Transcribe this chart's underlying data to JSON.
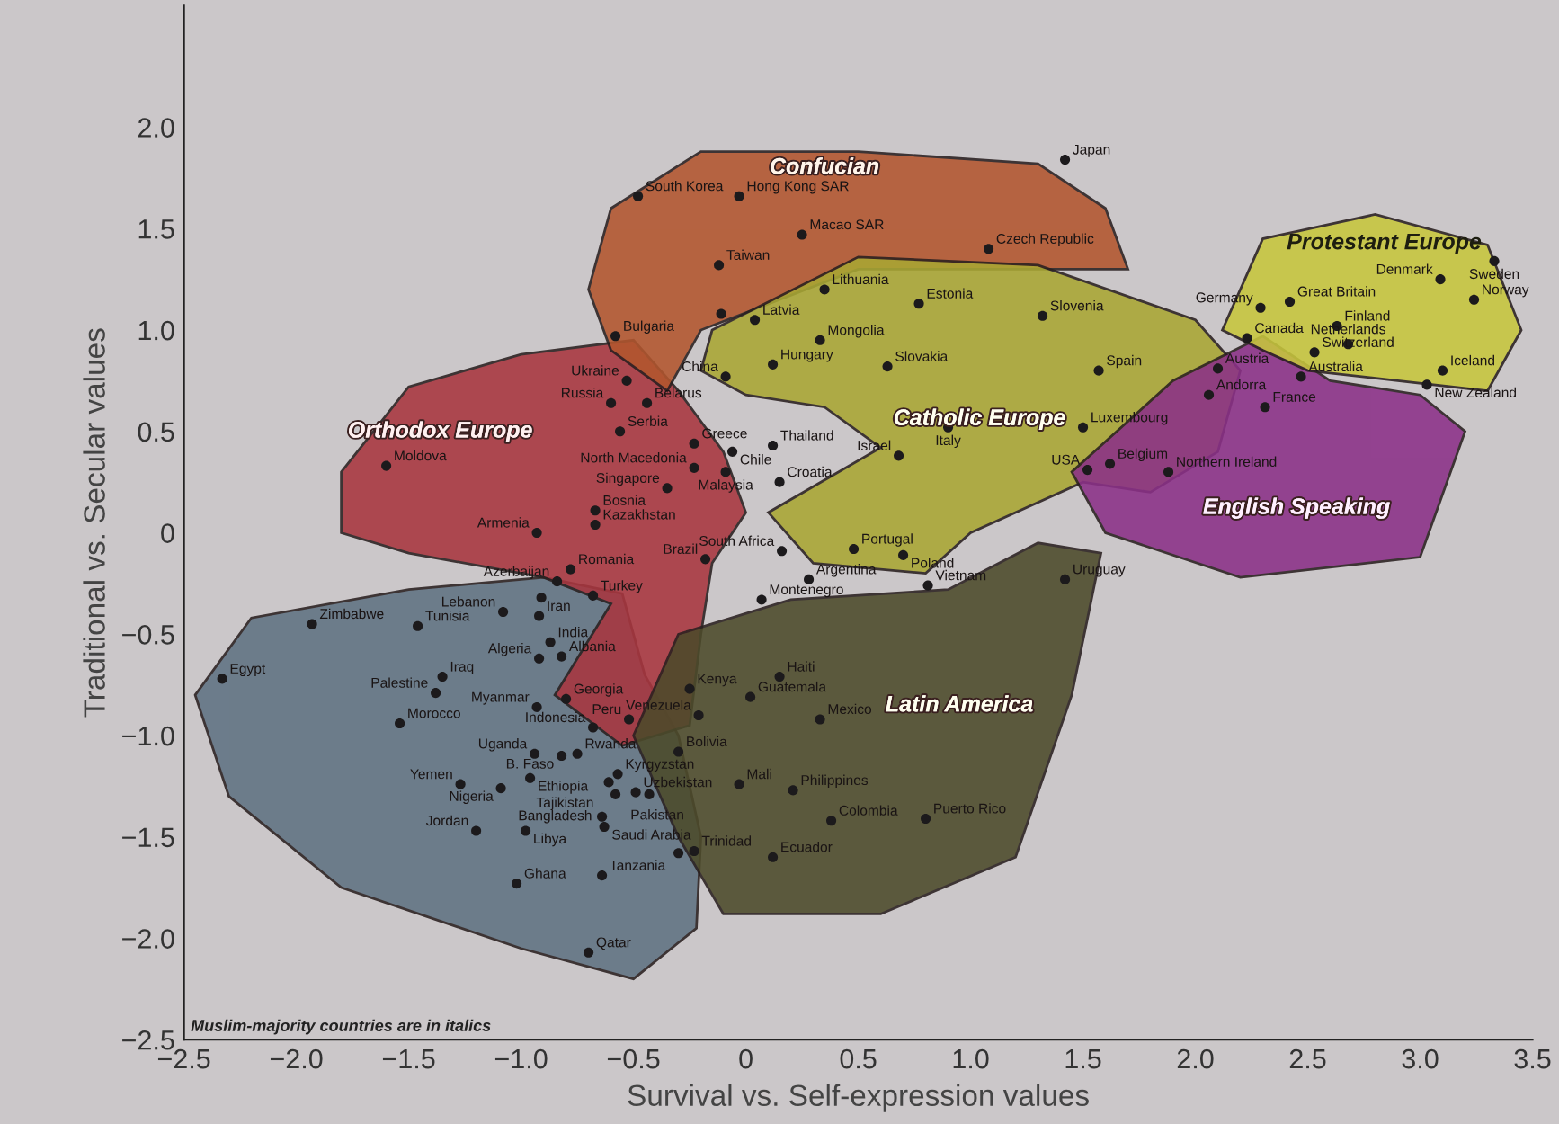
{
  "chart_data": {
    "type": "scatter",
    "xlabel": "Survival vs. Self-expression values",
    "ylabel": "Traditional vs. Secular values",
    "xlim": [
      -2.5,
      3.5
    ],
    "ylim": [
      -2.5,
      2.6
    ],
    "xticks": [
      {
        "value": -2.5,
        "label": "−2.5"
      },
      {
        "value": -2.0,
        "label": "−2.0"
      },
      {
        "value": -1.5,
        "label": "−1.5"
      },
      {
        "value": -1.0,
        "label": "−1.0"
      },
      {
        "value": -0.5,
        "label": "−0.5"
      },
      0,
      0.5,
      {
        "value": 1,
        "label": "1.0"
      },
      1.5,
      {
        "value": 2,
        "label": "2.0"
      },
      2.5,
      {
        "value": 3,
        "label": "3.0"
      },
      3.5
    ],
    "yticks": [
      {
        "value": -2.5,
        "label": "−2.5"
      },
      {
        "value": -2.0,
        "label": "−2.0"
      },
      {
        "value": -1.5,
        "label": "−1.5"
      },
      {
        "value": -1.0,
        "label": "−1.0"
      },
      {
        "value": -0.5,
        "label": "−0.5"
      },
      0,
      0.5,
      {
        "value": 1,
        "label": "1.0"
      },
      1.5,
      {
        "value": 2,
        "label": "2.0"
      }
    ],
    "marker": "circle",
    "series": [
      {
        "color": "#1c1a1c",
        "x": [
          -0.48,
          -0.03,
          0.25,
          1.42,
          -0.12,
          1.08,
          0.35,
          0.04,
          -0.11,
          0.33,
          0.12,
          -0.09,
          0.77,
          0.63,
          1.32,
          1.57,
          0.9,
          1.5,
          1.62,
          1.52,
          -0.06,
          0.12,
          0.68,
          0.15,
          -0.35,
          -0.09,
          -0.58,
          -0.53,
          -0.6,
          -0.44,
          -0.56,
          -0.23,
          -0.23,
          -1.6,
          -0.67,
          -0.93,
          -0.67,
          -0.78,
          0.48,
          0.7,
          0.16,
          -0.18,
          0.28,
          0.07,
          0.81,
          1.42,
          0.15,
          0.02,
          -0.21,
          0.33,
          -0.3,
          -0.03,
          0.21,
          0.8,
          0.38,
          -0.23,
          0.12,
          -0.3,
          2.29,
          2.42,
          2.23,
          2.1,
          2.06,
          2.31,
          2.47,
          2.53,
          2.63,
          2.68,
          3.09,
          3.33,
          3.24,
          3.1,
          3.03,
          1.88,
          -0.84,
          -1.08,
          -1.46,
          -1.93,
          -2.33,
          -0.68,
          -0.91,
          -0.92,
          -0.87,
          -0.82,
          -0.92,
          -1.35,
          -1.38,
          -1.54,
          -0.93,
          -0.8,
          -0.25,
          -0.52,
          -0.68,
          -0.75,
          -0.82,
          -0.94,
          -0.96,
          -1.27,
          -1.09,
          -0.61,
          -0.57,
          -0.49,
          -0.58,
          -0.64,
          -0.63,
          -0.43,
          -1.2,
          -0.98,
          -1.02,
          -0.64,
          -0.7
        ],
        "values": [
          1.66,
          1.66,
          1.47,
          1.84,
          1.32,
          1.4,
          1.2,
          1.05,
          1.08,
          0.95,
          0.83,
          0.77,
          1.13,
          0.82,
          1.07,
          0.8,
          0.52,
          0.52,
          0.34,
          0.31,
          0.4,
          0.43,
          0.38,
          0.25,
          0.22,
          0.3,
          0.97,
          0.75,
          0.64,
          0.64,
          0.5,
          0.44,
          0.32,
          0.33,
          0.11,
          0.0,
          0.04,
          -0.18,
          -0.08,
          -0.11,
          -0.09,
          -0.13,
          -0.23,
          -0.33,
          -0.26,
          -0.23,
          -0.71,
          -0.81,
          -0.9,
          -0.92,
          -1.08,
          -1.24,
          -1.27,
          -1.41,
          -1.42,
          -1.57,
          -1.6,
          -1.58,
          1.11,
          1.14,
          0.96,
          0.81,
          0.68,
          0.62,
          0.77,
          0.89,
          1.02,
          0.93,
          1.25,
          1.34,
          1.15,
          0.8,
          0.73,
          0.3,
          -0.24,
          -0.39,
          -0.46,
          -0.45,
          -0.72,
          -0.31,
          -0.32,
          -0.41,
          -0.54,
          -0.61,
          -0.62,
          -0.71,
          -0.79,
          -0.94,
          -0.86,
          -0.82,
          -0.77,
          -0.92,
          -0.96,
          -1.09,
          -1.1,
          -1.09,
          -1.21,
          -1.24,
          -1.26,
          -1.23,
          -1.19,
          -1.28,
          -1.29,
          -1.4,
          -1.45,
          -1.29,
          -1.47,
          -1.47,
          -1.73,
          -1.69,
          -2.07
        ],
        "value_labels": [
          "South Korea",
          "Hong Kong SAR",
          "Macao SAR",
          "Japan",
          "Taiwan",
          "Czech Republic",
          "Lithuania",
          "Latvia",
          null,
          "Mongolia",
          "Hungary",
          "China",
          "Estonia",
          "Slovakia",
          "Slovenia",
          "Spain",
          "Italy",
          "Luxembourg",
          "Belgium",
          "USA",
          "Chile",
          "Thailand",
          "Israel",
          "Croatia",
          "Singapore",
          "Malaysia",
          "Bulgaria",
          "Ukraine",
          "Russia",
          "Belarus",
          "Serbia",
          "Greece",
          "North Macedonia",
          "Moldova",
          "Bosnia",
          "Armenia",
          "Kazakhstan",
          "Romania",
          "Portugal",
          "Poland",
          "South Africa",
          "Brazil",
          "Argentina",
          "Montenegro",
          "Vietnam",
          "Uruguay",
          "Haiti",
          "Guatemala",
          "Venezuela",
          "Mexico",
          "Bolivia",
          "Mali",
          "Philippines",
          "Puerto Rico",
          "Colombia",
          "Trinidad",
          "Ecuador",
          null,
          "Germany",
          "Great Britain",
          "Canada",
          "Austria",
          "Andorra",
          "France",
          "Australia",
          "Switzerland",
          "Finland",
          "Netherlands",
          "Denmark",
          "Sweden",
          "Norway",
          "Iceland",
          "New Zealand",
          "Northern Ireland",
          "Azerbaijan",
          "Lebanon",
          "Tunisia",
          "Zimbabwe",
          "Egypt",
          "Turkey",
          null,
          "Iran",
          "India",
          "Albania",
          "Algeria",
          "Iraq",
          "Palestine",
          "Morocco",
          "Myanmar",
          "Georgia",
          "Kenya",
          "Peru",
          "Indonesia",
          "Rwanda",
          "B. Faso",
          "Uganda",
          "Ethiopia",
          "Yemen",
          "Nigeria",
          "Tajikistan",
          "Kyrgyzstan",
          "Uzbekistan",
          "Pakistan",
          "Bangladesh",
          "Saudi Arabia",
          null,
          "Jordan",
          "Libya",
          "Ghana",
          "Tanzania",
          "Qatar"
        ]
      }
    ],
    "annotations": [
      "Confucian",
      "Orthodox Europe",
      "Catholic Europe",
      "Protestant Europe",
      "English Speaking",
      "Latin America",
      "Muslim-majority countries are in italics"
    ]
  }
}
